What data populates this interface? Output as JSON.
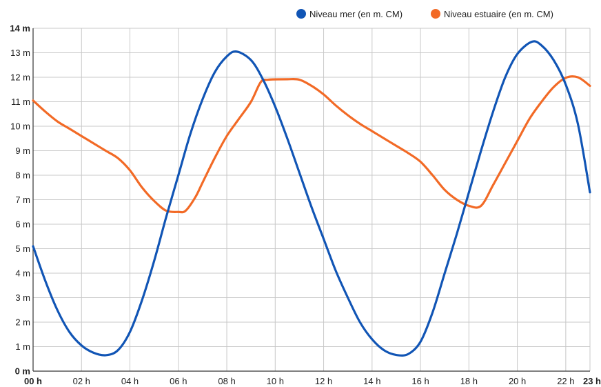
{
  "chart_data": {
    "type": "line",
    "title": "",
    "xlabel": "",
    "ylabel": "",
    "xlim": [
      0,
      23
    ],
    "ylim": [
      0,
      14
    ],
    "grid": true,
    "legend": "top-right",
    "colors": {
      "grid": "#c8c8c8",
      "axis": "#333333"
    },
    "x_ticks": [
      {
        "value": 0,
        "label": "00 h",
        "bold": true
      },
      {
        "value": 2,
        "label": "02 h",
        "bold": false
      },
      {
        "value": 4,
        "label": "04 h",
        "bold": false
      },
      {
        "value": 6,
        "label": "06 h",
        "bold": false
      },
      {
        "value": 8,
        "label": "08 h",
        "bold": false
      },
      {
        "value": 10,
        "label": "10 h",
        "bold": false
      },
      {
        "value": 12,
        "label": "12 h",
        "bold": false
      },
      {
        "value": 14,
        "label": "14 h",
        "bold": false
      },
      {
        "value": 16,
        "label": "16 h",
        "bold": false
      },
      {
        "value": 18,
        "label": "18 h",
        "bold": false
      },
      {
        "value": 20,
        "label": "20 h",
        "bold": false
      },
      {
        "value": 22,
        "label": "22 h",
        "bold": false
      },
      {
        "value": 23,
        "label": "23 h",
        "bold": true
      }
    ],
    "y_ticks": [
      {
        "value": 0,
        "label": "0 m",
        "bold": true
      },
      {
        "value": 1,
        "label": "1 m",
        "bold": false
      },
      {
        "value": 2,
        "label": "2 m",
        "bold": false
      },
      {
        "value": 3,
        "label": "3 m",
        "bold": false
      },
      {
        "value": 4,
        "label": "4 m",
        "bold": false
      },
      {
        "value": 5,
        "label": "5 m",
        "bold": false
      },
      {
        "value": 6,
        "label": "6 m",
        "bold": false
      },
      {
        "value": 7,
        "label": "7 m",
        "bold": false
      },
      {
        "value": 8,
        "label": "8 m",
        "bold": false
      },
      {
        "value": 9,
        "label": "9 m",
        "bold": false
      },
      {
        "value": 10,
        "label": "10 m",
        "bold": false
      },
      {
        "value": 11,
        "label": "11 m",
        "bold": false
      },
      {
        "value": 12,
        "label": "12 m",
        "bold": false
      },
      {
        "value": 13,
        "label": "13 m",
        "bold": false
      },
      {
        "value": 14,
        "label": "14 m",
        "bold": true
      }
    ],
    "series": [
      {
        "name": "Niveau mer (en m. CM)",
        "color": "#1155b5",
        "points": [
          [
            0,
            5.1
          ],
          [
            0.5,
            3.7
          ],
          [
            1,
            2.5
          ],
          [
            1.5,
            1.6
          ],
          [
            2,
            1.05
          ],
          [
            2.5,
            0.75
          ],
          [
            3,
            0.65
          ],
          [
            3.5,
            0.85
          ],
          [
            4,
            1.6
          ],
          [
            4.5,
            2.9
          ],
          [
            5,
            4.5
          ],
          [
            5.5,
            6.3
          ],
          [
            6,
            8.0
          ],
          [
            6.5,
            9.7
          ],
          [
            7,
            11.1
          ],
          [
            7.5,
            12.2
          ],
          [
            8,
            12.85
          ],
          [
            8.4,
            13.05
          ],
          [
            9,
            12.7
          ],
          [
            9.5,
            11.9
          ],
          [
            10,
            10.8
          ],
          [
            10.5,
            9.5
          ],
          [
            11,
            8.1
          ],
          [
            11.5,
            6.7
          ],
          [
            12,
            5.4
          ],
          [
            12.5,
            4.1
          ],
          [
            13,
            3.0
          ],
          [
            13.5,
            2.0
          ],
          [
            14,
            1.3
          ],
          [
            14.5,
            0.85
          ],
          [
            15,
            0.66
          ],
          [
            15.5,
            0.7
          ],
          [
            16,
            1.2
          ],
          [
            16.5,
            2.4
          ],
          [
            17,
            4.0
          ],
          [
            17.5,
            5.6
          ],
          [
            18,
            7.3
          ],
          [
            18.5,
            9.0
          ],
          [
            19,
            10.6
          ],
          [
            19.5,
            12.0
          ],
          [
            20,
            12.95
          ],
          [
            20.6,
            13.45
          ],
          [
            21,
            13.3
          ],
          [
            21.5,
            12.7
          ],
          [
            22,
            11.7
          ],
          [
            22.5,
            10.1
          ],
          [
            23,
            7.3
          ]
        ]
      },
      {
        "name": "Niveau estuaire (en m. CM)",
        "color": "#f26a26",
        "points": [
          [
            0,
            11.05
          ],
          [
            0.5,
            10.6
          ],
          [
            1,
            10.2
          ],
          [
            1.5,
            9.9
          ],
          [
            2,
            9.6
          ],
          [
            2.5,
            9.3
          ],
          [
            3,
            9.0
          ],
          [
            3.5,
            8.7
          ],
          [
            4,
            8.2
          ],
          [
            4.5,
            7.5
          ],
          [
            5,
            6.95
          ],
          [
            5.5,
            6.55
          ],
          [
            6,
            6.5
          ],
          [
            6.3,
            6.55
          ],
          [
            6.7,
            7.1
          ],
          [
            7,
            7.7
          ],
          [
            7.5,
            8.7
          ],
          [
            8,
            9.6
          ],
          [
            8.5,
            10.3
          ],
          [
            9,
            11.0
          ],
          [
            9.4,
            11.8
          ],
          [
            9.7,
            11.9
          ],
          [
            10.5,
            11.92
          ],
          [
            11,
            11.9
          ],
          [
            11.5,
            11.65
          ],
          [
            12,
            11.3
          ],
          [
            12.5,
            10.85
          ],
          [
            13,
            10.45
          ],
          [
            13.5,
            10.1
          ],
          [
            14,
            9.8
          ],
          [
            14.5,
            9.5
          ],
          [
            15,
            9.2
          ],
          [
            15.5,
            8.9
          ],
          [
            16,
            8.55
          ],
          [
            16.5,
            8.0
          ],
          [
            17,
            7.4
          ],
          [
            17.5,
            7.0
          ],
          [
            18,
            6.75
          ],
          [
            18.5,
            6.75
          ],
          [
            19,
            7.6
          ],
          [
            19.5,
            8.5
          ],
          [
            20,
            9.4
          ],
          [
            20.5,
            10.3
          ],
          [
            21,
            11.0
          ],
          [
            21.5,
            11.6
          ],
          [
            22,
            11.98
          ],
          [
            22.5,
            12.0
          ],
          [
            23,
            11.65
          ]
        ]
      }
    ]
  }
}
